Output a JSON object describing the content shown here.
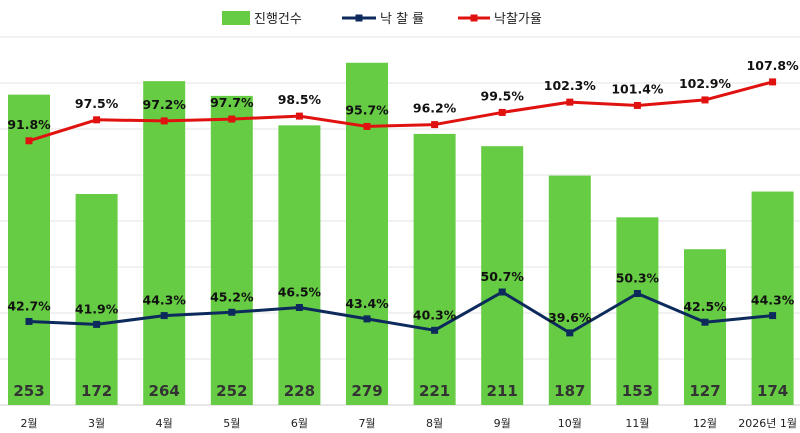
{
  "chart_data": {
    "type": "bar",
    "categories": [
      "2월",
      "3월",
      "4월",
      "5월",
      "6월",
      "7월",
      "8월",
      "9월",
      "10월",
      "11월",
      "12월",
      "2026년 1월"
    ],
    "series": [
      {
        "name": "진행건수",
        "type": "bar",
        "color": "#66cc44",
        "values": [
          253,
          172,
          264,
          252,
          228,
          279,
          221,
          211,
          187,
          153,
          127,
          174
        ],
        "labels": [
          "253",
          "172",
          "264",
          "252",
          "228",
          "279",
          "221",
          "211",
          "187",
          "153",
          "127",
          "174"
        ]
      },
      {
        "name": "낙 찰 률",
        "type": "line",
        "color": "#0d2a5c",
        "values": [
          42.7,
          41.9,
          44.3,
          45.2,
          46.5,
          43.4,
          40.3,
          50.7,
          39.6,
          50.3,
          42.5,
          44.3
        ],
        "labels": [
          "42.7%",
          "41.9%",
          "44.3%",
          "45.2%",
          "46.5%",
          "43.4%",
          "40.3%",
          "50.7%",
          "39.6%",
          "50.3%",
          "42.5%",
          "44.3%"
        ]
      },
      {
        "name": "낙찰가율",
        "type": "line",
        "color": "#e0120f",
        "values": [
          91.8,
          97.5,
          97.2,
          97.7,
          98.5,
          95.7,
          96.2,
          99.5,
          102.3,
          101.4,
          102.9,
          107.8
        ],
        "labels": [
          "91.8%",
          "97.5%",
          "97.2%",
          "97.7%",
          "98.5%",
          "95.7%",
          "96.2%",
          "99.5%",
          "102.3%",
          "101.4%",
          "102.9%",
          "107.8%"
        ]
      }
    ],
    "legend_position": "top",
    "grid": true,
    "bar_axis": {
      "min": 0,
      "max": 300
    },
    "line_axis": {
      "min": 20,
      "max": 120
    }
  }
}
